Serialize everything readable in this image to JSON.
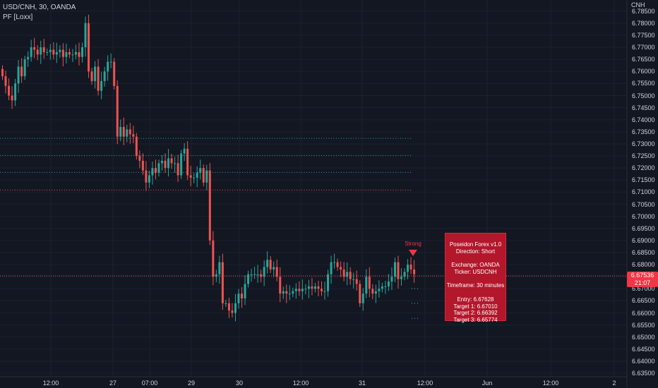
{
  "legend": {
    "symbol": "USD/CNH, 30, OANDA",
    "indicator": "PF [Loxx]"
  },
  "axis": {
    "currency": "CNH",
    "y_ticks": [
      "6.78500",
      "6.78000",
      "6.77500",
      "6.77000",
      "6.76500",
      "6.76000",
      "6.75500",
      "6.75000",
      "6.74500",
      "6.74000",
      "6.73500",
      "6.73000",
      "6.72500",
      "6.72000",
      "6.71500",
      "6.71000",
      "6.70500",
      "6.70000",
      "6.69500",
      "6.69000",
      "6.68500",
      "6.68000",
      "6.67500",
      "6.67000",
      "6.66500",
      "6.66000",
      "6.65500",
      "6.65000",
      "6.64500",
      "6.64000",
      "6.63500"
    ],
    "x_ticks": [
      "12:00",
      "27",
      "07:00",
      "29",
      "30",
      "12:00",
      "31",
      "12:00",
      "Jun",
      "12:00",
      "2"
    ]
  },
  "price_badge": {
    "price": "6.67536",
    "countdown": "21:07"
  },
  "signal": {
    "strength_label": "Strong",
    "box": {
      "title": "Poseidon Forex v1.0",
      "direction": "Direction: Short",
      "exchange": "Exchange: OANDA",
      "ticker": "Ticker: USDCNH",
      "timeframe": "Timeframe: 30 minutes",
      "entry": "Entry: 6.67628",
      "target1": "Target 1: 6.67010",
      "target2": "Target 2: 6.66392",
      "target3": "Target 3: 6.65774"
    }
  },
  "colors": {
    "background": "#131722",
    "up": "#26a69a",
    "down": "#ef5350",
    "signal_box": "#b2172b",
    "target_line": "#26a69a",
    "stop_line": "#ef5350"
  },
  "chart_data": {
    "type": "candlestick",
    "symbol": "USD/CNH",
    "timeframe": "30",
    "source": "OANDA",
    "ylim": [
      6.633,
      6.789
    ],
    "y_ticks": [
      6.785,
      6.78,
      6.775,
      6.77,
      6.765,
      6.76,
      6.755,
      6.75,
      6.745,
      6.74,
      6.735,
      6.73,
      6.725,
      6.72,
      6.715,
      6.71,
      6.705,
      6.7,
      6.695,
      6.69,
      6.685,
      6.68,
      6.675,
      6.67,
      6.665,
      6.66,
      6.655,
      6.65,
      6.645,
      6.64,
      6.635
    ],
    "x_ticks": [
      "12:00",
      "27",
      "07:00",
      "29",
      "30",
      "12:00",
      "31",
      "12:00",
      "Jun",
      "12:00",
      "2"
    ],
    "last_price": 6.67536,
    "horizontal_levels": [
      {
        "value": 6.7323,
        "color": "green",
        "style": "dotted"
      },
      {
        "value": 6.7252,
        "color": "green",
        "style": "dotted"
      },
      {
        "value": 6.7182,
        "color": "green",
        "style": "dotted"
      },
      {
        "value": 6.7109,
        "color": "red",
        "style": "dotted"
      }
    ],
    "signal_targets": [
      6.6701,
      6.66392,
      6.65774
    ],
    "closes": [
      6.758,
      6.754,
      6.75,
      6.748,
      6.755,
      6.762,
      6.758,
      6.765,
      6.766,
      6.77,
      6.769,
      6.767,
      6.77,
      6.768,
      6.768,
      6.769,
      6.767,
      6.768,
      6.769,
      6.766,
      6.768,
      6.767,
      6.767,
      6.768,
      6.766,
      6.77,
      6.78,
      6.76,
      6.756,
      6.762,
      6.752,
      6.756,
      6.76,
      6.764,
      6.764,
      6.754,
      6.733,
      6.737,
      6.733,
      6.736,
      6.734,
      6.733,
      6.725,
      6.723,
      6.719,
      6.714,
      6.717,
      6.72,
      6.718,
      6.722,
      6.723,
      6.72,
      6.724,
      6.722,
      6.722,
      6.717,
      6.726,
      6.728,
      6.717,
      6.716,
      6.716,
      6.718,
      6.72,
      6.714,
      6.719,
      6.69,
      6.675,
      6.676,
      6.681,
      6.664,
      6.664,
      6.661,
      6.66,
      6.664,
      6.668,
      6.666,
      6.672,
      6.676,
      6.676,
      6.676,
      6.676,
      6.675,
      6.679,
      6.682,
      6.678,
      6.679,
      6.675,
      6.668,
      6.669,
      6.668,
      6.668,
      6.669,
      6.67,
      6.669,
      6.67,
      6.67,
      6.671,
      6.67,
      6.671,
      6.67,
      6.669,
      6.669,
      6.676,
      6.681,
      6.681,
      6.679,
      6.678,
      6.675,
      6.677,
      6.674,
      6.674,
      6.672,
      6.664,
      6.668,
      6.675,
      6.67,
      6.668,
      6.669,
      6.67,
      6.671,
      6.671,
      6.673,
      6.675,
      6.681,
      6.674,
      6.675,
      6.677,
      6.68,
      6.678,
      6.676
    ]
  }
}
